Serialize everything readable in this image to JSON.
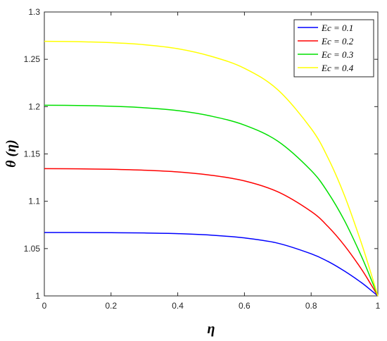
{
  "chart_data": {
    "type": "line",
    "xlabel": "η",
    "ylabel": "θ (η)",
    "xlim": [
      0,
      1
    ],
    "ylim": [
      1,
      1.3
    ],
    "grid": false,
    "legend_position": "top-right",
    "xticks": [
      "0",
      "0.2",
      "0.4",
      "0.6",
      "0.8",
      "1"
    ],
    "yticks": [
      "1",
      "1.05",
      "1.1",
      "1.15",
      "1.2",
      "1.25",
      "1.3"
    ],
    "x": [
      0,
      0.1,
      0.2,
      0.3,
      0.4,
      0.5,
      0.6,
      0.7,
      0.8,
      0.85,
      0.9,
      0.95,
      0.98,
      1.0
    ],
    "series": [
      {
        "name": "Ec = 0.1",
        "color": "#0000ff",
        "values": [
          1.067,
          1.067,
          1.0668,
          1.0665,
          1.0658,
          1.0642,
          1.0613,
          1.0557,
          1.0445,
          1.0365,
          1.0262,
          1.0142,
          1.0058,
          1.0
        ]
      },
      {
        "name": "Ec = 0.2",
        "color": "#ff0000",
        "values": [
          1.1345,
          1.1343,
          1.1338,
          1.1328,
          1.131,
          1.1275,
          1.1215,
          1.11,
          1.0892,
          1.0735,
          1.0532,
          1.0287,
          1.0117,
          1.0
        ]
      },
      {
        "name": "Ec = 0.3",
        "color": "#00e000",
        "values": [
          1.2015,
          1.2012,
          1.2004,
          1.1988,
          1.1958,
          1.19,
          1.1805,
          1.1635,
          1.1325,
          1.1095,
          1.0795,
          1.0425,
          1.0174,
          1.0
        ]
      },
      {
        "name": "Ec = 0.4",
        "color": "#ffff00",
        "values": [
          1.269,
          1.2686,
          1.2676,
          1.2654,
          1.2612,
          1.2532,
          1.2405,
          1.2178,
          1.1768,
          1.1462,
          1.106,
          1.0565,
          1.0232,
          1.0
        ]
      }
    ]
  }
}
